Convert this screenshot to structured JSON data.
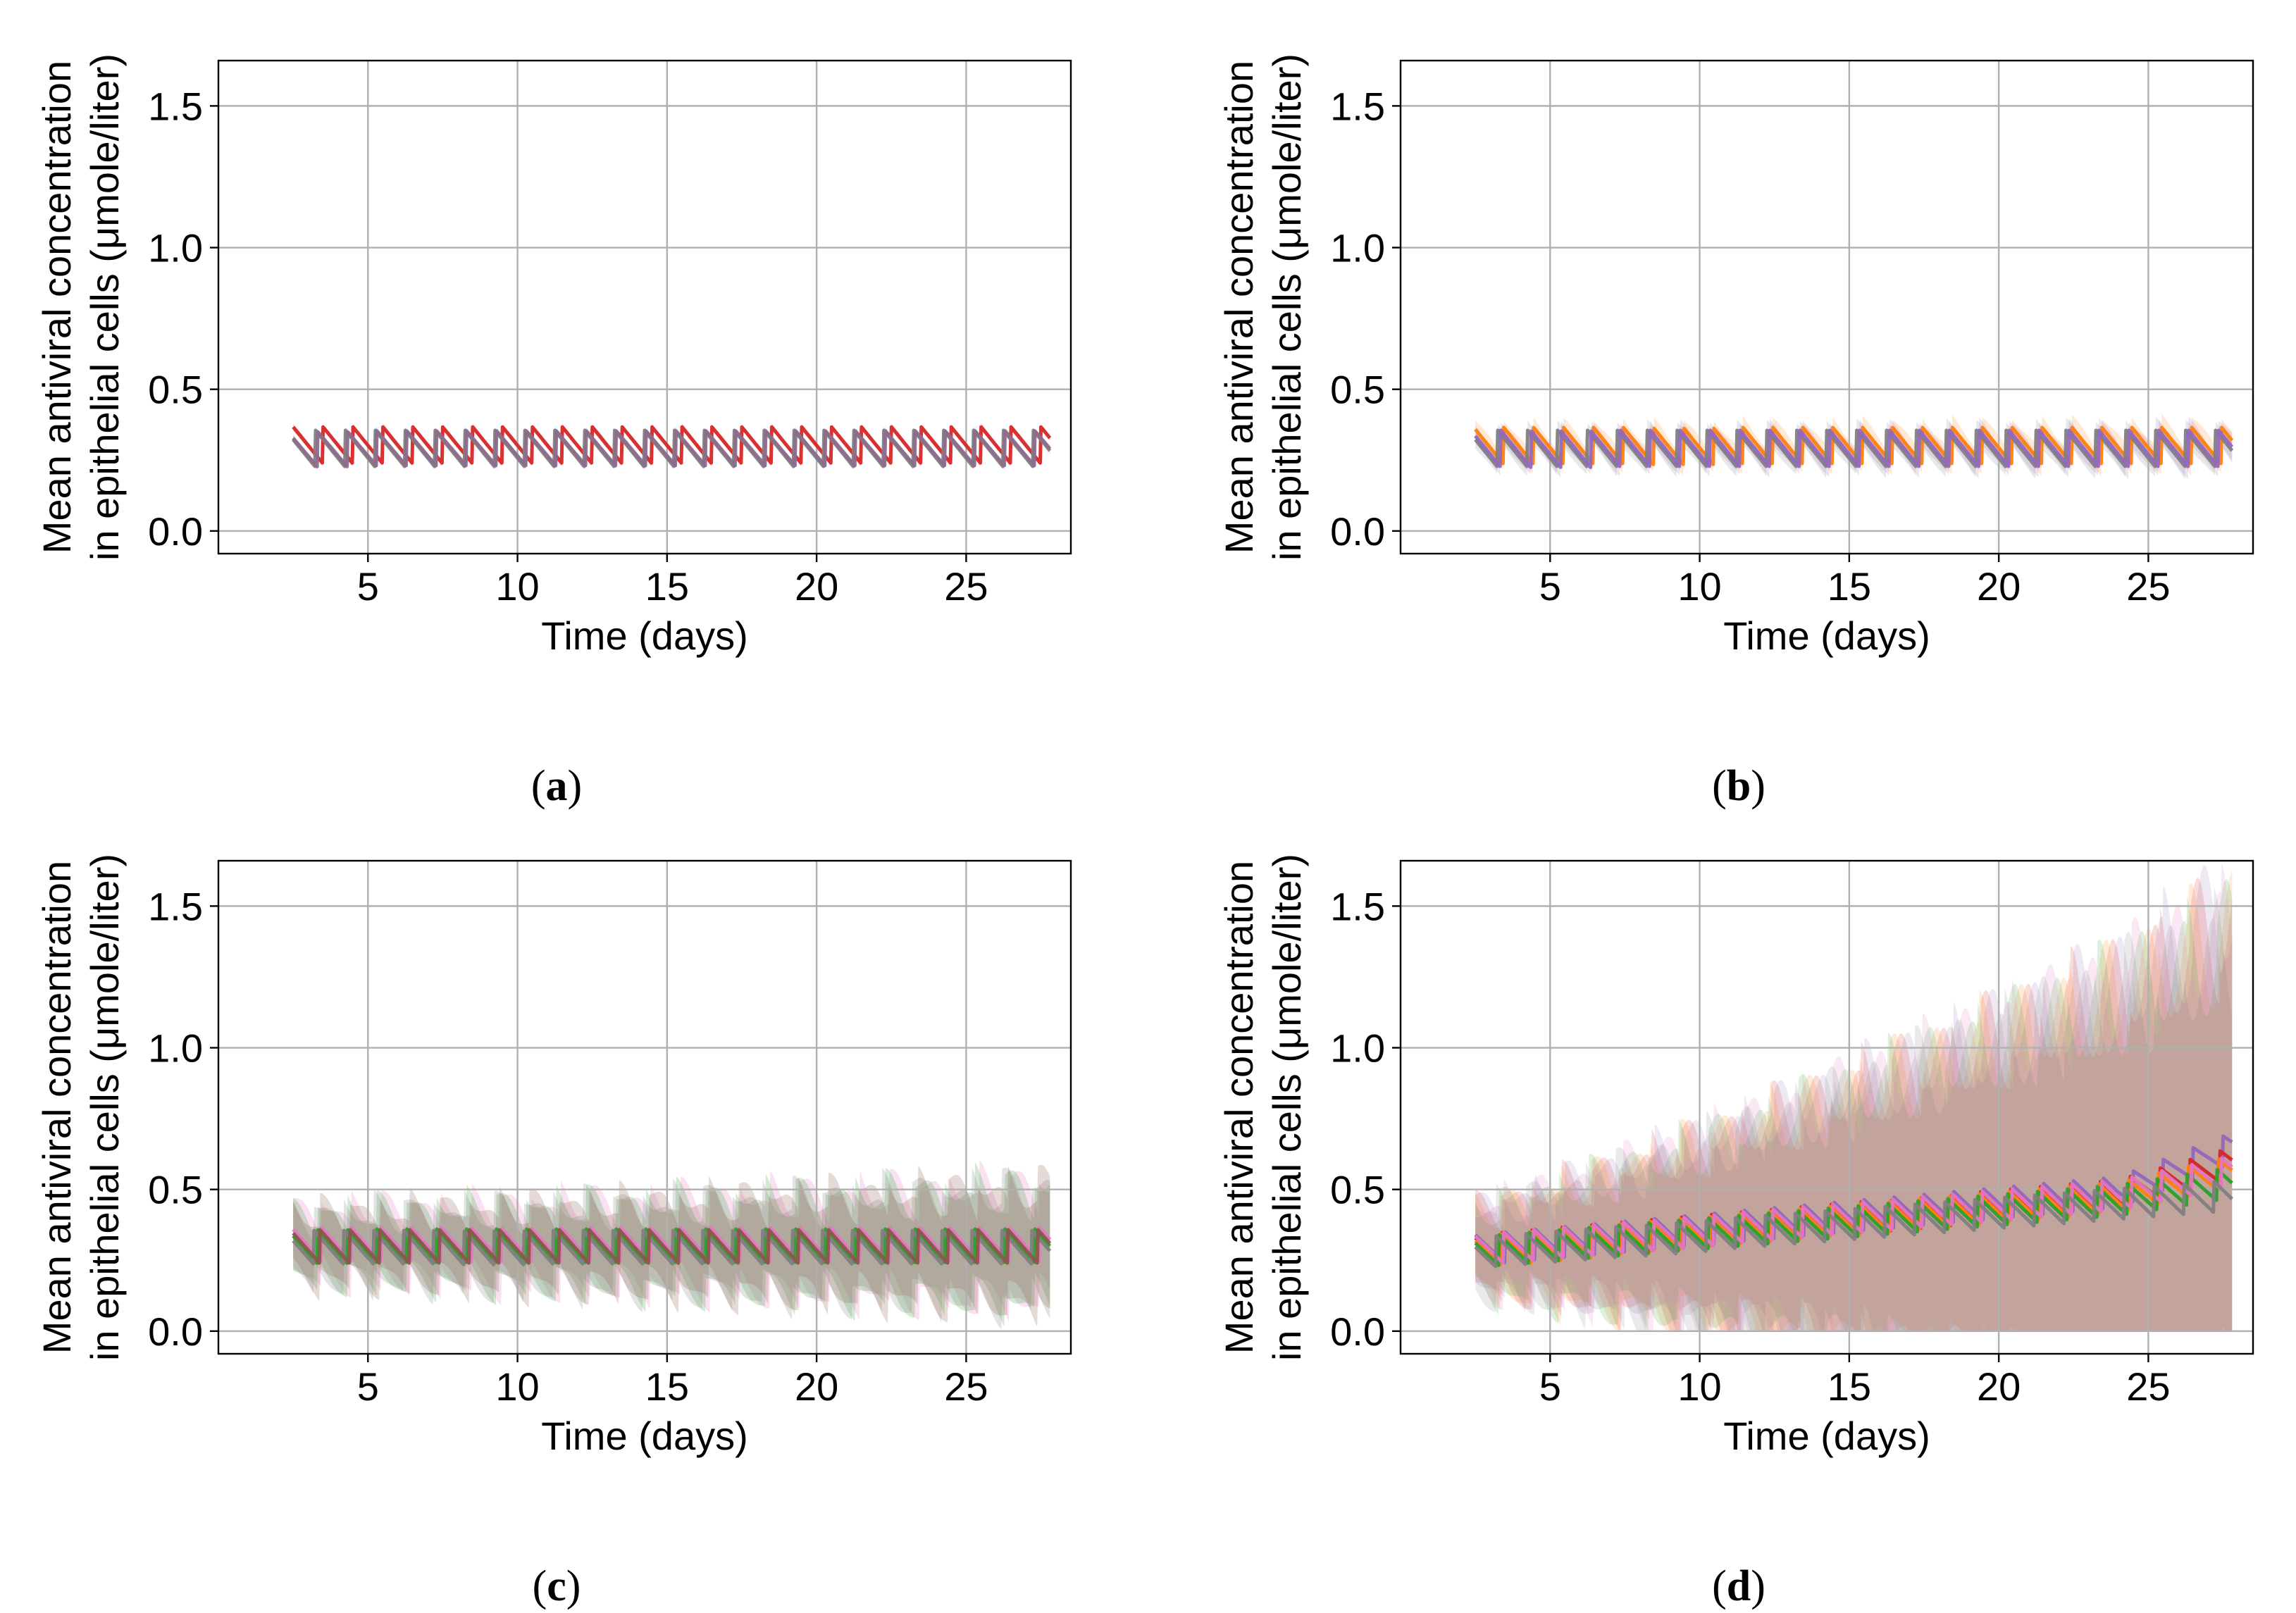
{
  "figure": {
    "panels_count": 4
  },
  "chart_data": [
    {
      "type": "line",
      "panel": "a",
      "caption_open": "(",
      "caption_letter": "a",
      "caption_close": ")",
      "title": "",
      "xlabel": "Time (days)",
      "ylabel_line1": "Mean antiviral concentration",
      "ylabel_line2": "in epithelial cells (μmole/liter)",
      "xlim": [
        0,
        28.5
      ],
      "ylim": [
        -0.08,
        1.66
      ],
      "xticks": [
        5,
        10,
        15,
        20,
        25
      ],
      "xtick_labels": [
        "5",
        "10",
        "15",
        "20",
        "25"
      ],
      "yticks": [
        0.0,
        0.5,
        1.0,
        1.5
      ],
      "ytick_labels": [
        "0.0",
        "0.5",
        "1.0",
        "1.5"
      ],
      "grid": true,
      "x_start": 2.5,
      "x_end": 27.8,
      "dose_interval_days": 1,
      "band_halfwidth_start": 0.01,
      "band_halfwidth_end": 0.01,
      "band_alpha": 0.25,
      "series": [
        {
          "name": "series-1",
          "color": "#d62728",
          "offset_days": 0.0,
          "baseline": 0.302,
          "amplitude": 0.13,
          "growth_per_day": 0.0,
          "late_rise": 0.0
        },
        {
          "name": "series-2",
          "color": "#7f7f7f",
          "offset_days": 0.25,
          "baseline": 0.29,
          "amplitude": 0.13,
          "growth_per_day": 0.0,
          "late_rise": 0.0
        },
        {
          "name": "series-3",
          "color": "#8c6d8c",
          "offset_days": 0.2,
          "baseline": 0.29,
          "amplitude": 0.125,
          "growth_per_day": 0.0,
          "late_rise": 0.0
        }
      ]
    },
    {
      "type": "line",
      "panel": "b",
      "caption_open": "(",
      "caption_letter": "b",
      "caption_close": ")",
      "title": "",
      "xlabel": "Time (days)",
      "ylabel_line1": "Mean antiviral concentration",
      "ylabel_line2": "in epithelial cells (μmole/liter)",
      "xlim": [
        0,
        28.5
      ],
      "ylim": [
        -0.08,
        1.66
      ],
      "xticks": [
        5,
        10,
        15,
        20,
        25
      ],
      "xtick_labels": [
        "5",
        "10",
        "15",
        "20",
        "25"
      ],
      "yticks": [
        0.0,
        0.5,
        1.0,
        1.5
      ],
      "ytick_labels": [
        "0.0",
        "0.5",
        "1.0",
        "1.5"
      ],
      "grid": true,
      "x_start": 2.5,
      "x_end": 27.8,
      "dose_interval_days": 1,
      "band_halfwidth_start": 0.03,
      "band_halfwidth_end": 0.04,
      "band_alpha": 0.18,
      "series": [
        {
          "name": "series-1",
          "color": "#ff7f0e",
          "offset_days": 0.05,
          "baseline": 0.3,
          "amplitude": 0.13,
          "growth_per_day": 0.0,
          "late_rise": 0.0
        },
        {
          "name": "series-2",
          "color": "#7f7f7f",
          "offset_days": 0.25,
          "baseline": 0.29,
          "amplitude": 0.13,
          "growth_per_day": 0.0,
          "late_rise": 0.0
        },
        {
          "name": "series-3",
          "color": "#9467bd",
          "offset_days": 0.15,
          "baseline": 0.29,
          "amplitude": 0.13,
          "growth_per_day": 0.0,
          "late_rise": 0.0
        }
      ]
    },
    {
      "type": "line",
      "panel": "c",
      "caption_open": "(",
      "caption_letter": "c",
      "caption_close": ")",
      "title": "",
      "xlabel": "Time (days)",
      "ylabel_line1": "Mean antiviral concentration",
      "ylabel_line2": "in epithelial cells (μmole/liter)",
      "xlim": [
        0,
        28.5
      ],
      "ylim": [
        -0.08,
        1.66
      ],
      "xticks": [
        5,
        10,
        15,
        20,
        25
      ],
      "xtick_labels": [
        "5",
        "10",
        "15",
        "20",
        "25"
      ],
      "yticks": [
        0.0,
        0.5,
        1.0,
        1.5
      ],
      "ytick_labels": [
        "0.0",
        "0.5",
        "1.0",
        "1.5"
      ],
      "grid": true,
      "x_start": 2.5,
      "x_end": 27.8,
      "dose_interval_days": 1,
      "band_halfwidth_start": 0.11,
      "band_halfwidth_end": 0.2,
      "band_alpha": 0.22,
      "series": [
        {
          "name": "series-1",
          "color": "#e377c2",
          "offset_days": 0.05,
          "baseline": 0.305,
          "amplitude": 0.12,
          "growth_per_day": 0.0,
          "late_rise": 0.0
        },
        {
          "name": "series-2",
          "color": "#2ca02c",
          "offset_days": 0.2,
          "baseline": 0.3,
          "amplitude": 0.12,
          "growth_per_day": 0.0,
          "late_rise": 0.0
        },
        {
          "name": "series-3",
          "color": "#7f7f7f",
          "offset_days": 0.3,
          "baseline": 0.295,
          "amplitude": 0.12,
          "growth_per_day": 0.0,
          "late_rise": 0.0
        },
        {
          "name": "series-4",
          "color": "#8c564b",
          "offset_days": 0.12,
          "baseline": 0.3,
          "amplitude": 0.12,
          "growth_per_day": 0.0,
          "late_rise": 0.0
        }
      ]
    },
    {
      "type": "line",
      "panel": "d",
      "caption_open": "(",
      "caption_letter": "d",
      "caption_close": ")",
      "title": "",
      "xlabel": "Time (days)",
      "ylabel_line1": "Mean antiviral concentration",
      "ylabel_line2": "in epithelial cells (μmole/liter)",
      "xlim": [
        0,
        28.5
      ],
      "ylim": [
        -0.08,
        1.66
      ],
      "xticks": [
        5,
        10,
        15,
        20,
        25
      ],
      "xtick_labels": [
        "5",
        "10",
        "15",
        "20",
        "25"
      ],
      "yticks": [
        0.0,
        0.5,
        1.0,
        1.5
      ],
      "ytick_labels": [
        "0.0",
        "0.5",
        "1.0",
        "1.5"
      ],
      "grid": true,
      "x_start": 2.5,
      "x_end": 27.8,
      "dose_interval_days": 1,
      "band_halfwidth_start": 0.14,
      "band_halfwidth_end": 0.85,
      "band_alpha": 0.16,
      "series": [
        {
          "name": "series-1",
          "color": "#9467bd",
          "offset_days": 0.0,
          "baseline": 0.285,
          "amplitude": 0.11,
          "growth_per_day": 0.0095,
          "late_rise": 0.12
        },
        {
          "name": "series-2",
          "color": "#d62728",
          "offset_days": 0.1,
          "baseline": 0.285,
          "amplitude": 0.11,
          "growth_per_day": 0.009,
          "late_rise": 0.08
        },
        {
          "name": "series-3",
          "color": "#ff7f0e",
          "offset_days": 0.15,
          "baseline": 0.28,
          "amplitude": 0.11,
          "growth_per_day": 0.0088,
          "late_rise": 0.06
        },
        {
          "name": "series-4",
          "color": "#2ca02c",
          "offset_days": 0.22,
          "baseline": 0.28,
          "amplitude": 0.11,
          "growth_per_day": 0.0085,
          "late_rise": 0.03
        },
        {
          "name": "series-5",
          "color": "#e377c2",
          "offset_days": 0.05,
          "baseline": 0.285,
          "amplitude": 0.11,
          "growth_per_day": 0.009,
          "late_rise": 0.05
        },
        {
          "name": "series-6",
          "color": "#7f7f7f",
          "offset_days": 0.3,
          "baseline": 0.275,
          "amplitude": 0.11,
          "growth_per_day": 0.008,
          "late_rise": 0.0
        }
      ]
    }
  ]
}
